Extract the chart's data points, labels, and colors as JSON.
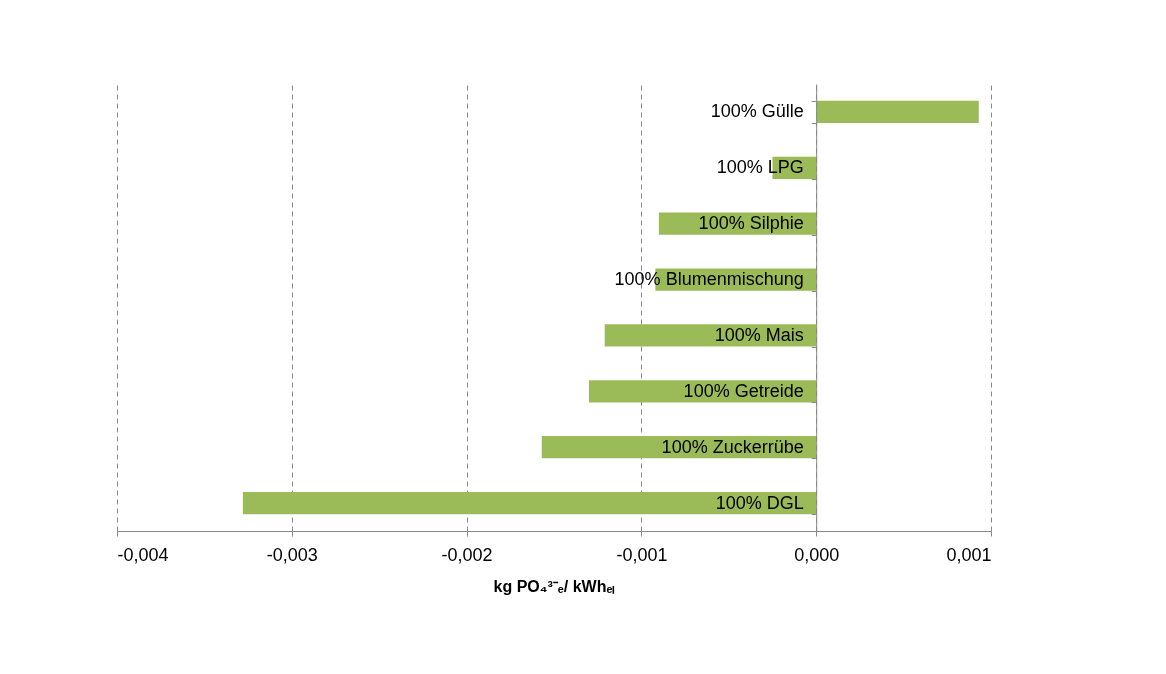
{
  "chart_data": {
    "type": "bar",
    "orientation": "horizontal",
    "xlabel": "kg PO₄³⁻ₑ/ kWhₑₗ",
    "categories": [
      "100% Gülle",
      "100% LPG",
      "100% Silphie",
      "100% Blumenmischung",
      "100% Mais",
      "100% Getreide",
      "100% Zuckerrübe",
      "100% DGL"
    ],
    "values": [
      0.00093,
      -0.00025,
      -0.0009,
      -0.00092,
      -0.00121,
      -0.0013,
      -0.00157,
      -0.00328
    ],
    "color": "#9bbb59",
    "xlim": [
      -0.004,
      0.001
    ],
    "xticks": [
      {
        "value": -0.004,
        "label": "-0,004"
      },
      {
        "value": -0.003,
        "label": "-0,003"
      },
      {
        "value": -0.002,
        "label": "-0,002"
      },
      {
        "value": -0.001,
        "label": "-0,001"
      },
      {
        "value": 0,
        "label": "0,000"
      },
      {
        "value": 0.001,
        "label": "0,001"
      }
    ],
    "grid": "x"
  }
}
